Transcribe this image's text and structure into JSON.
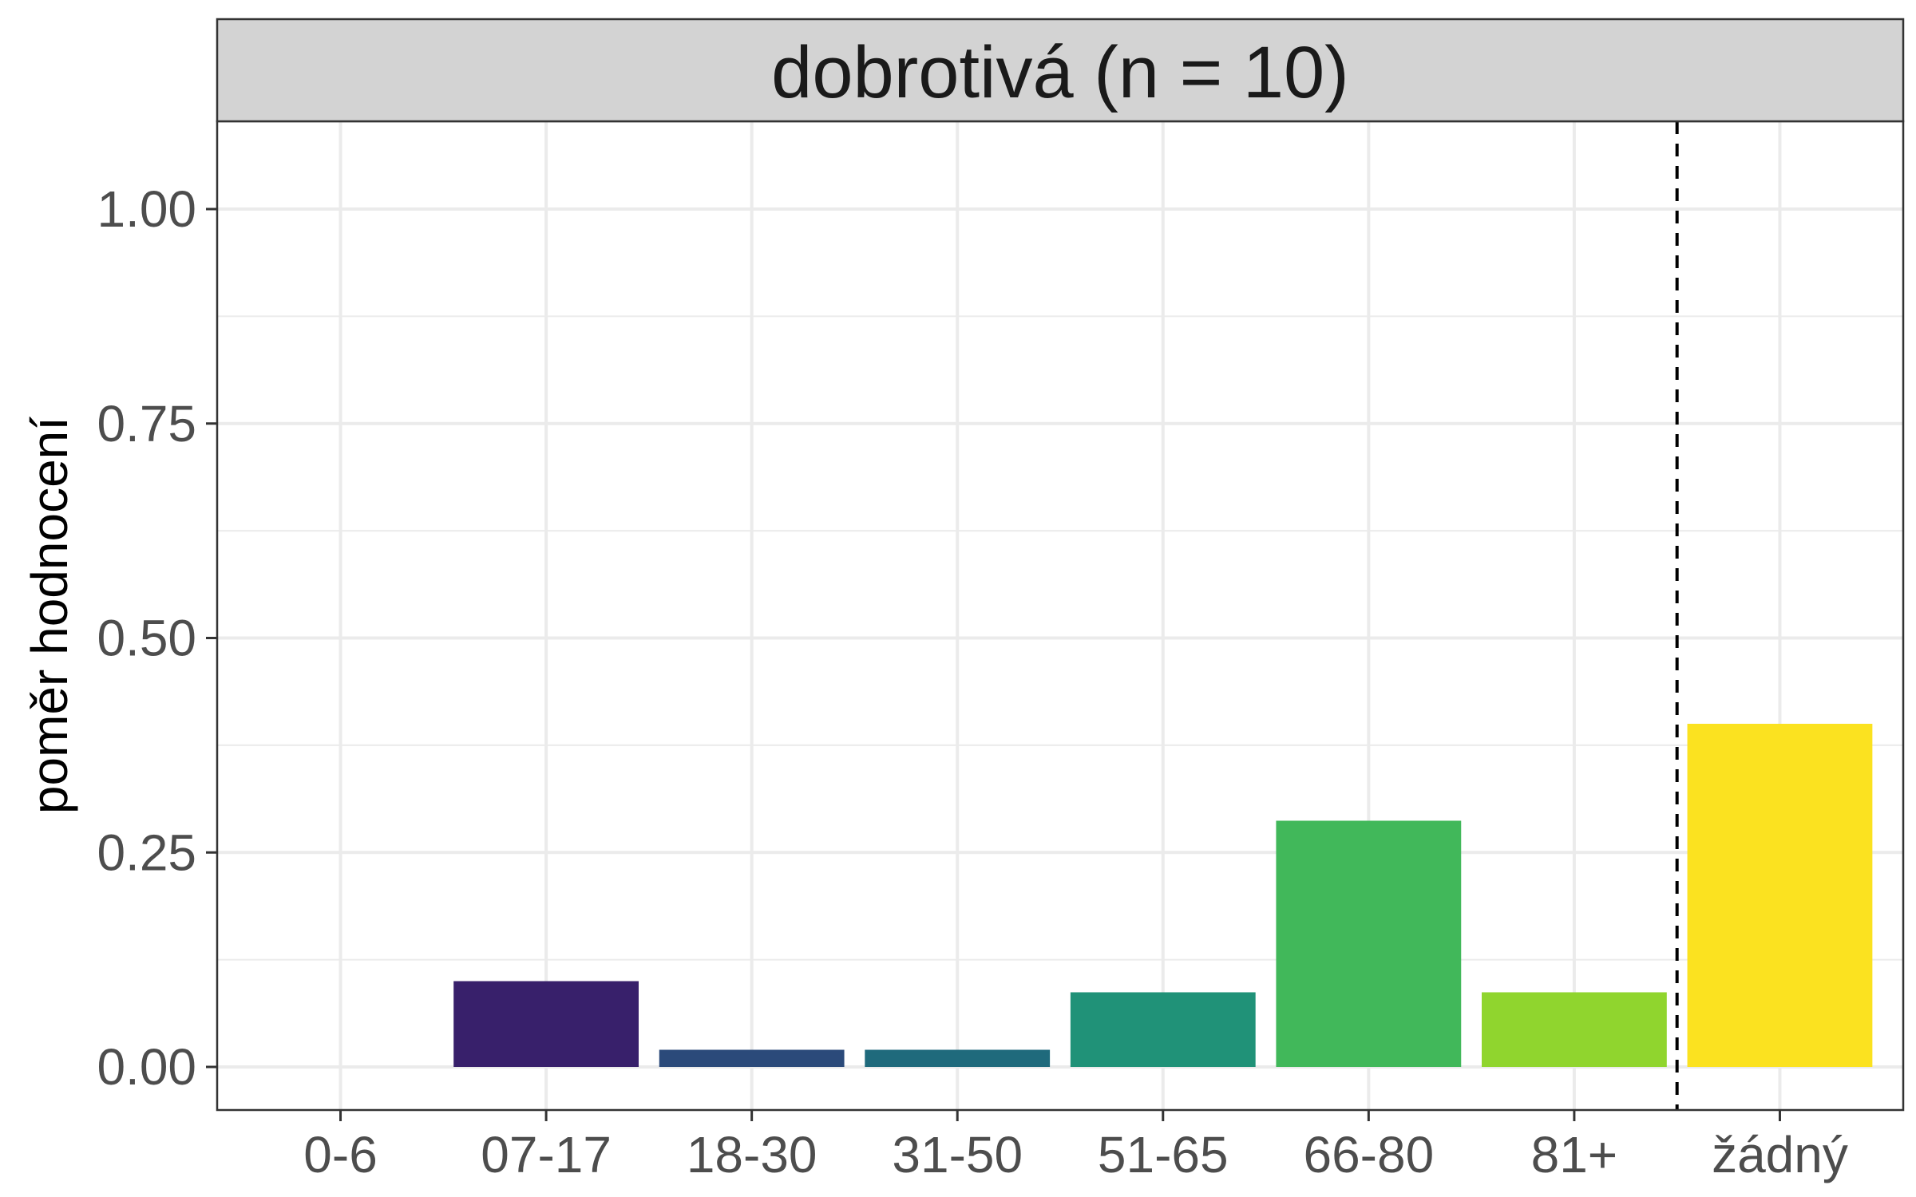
{
  "chart_data": {
    "type": "bar",
    "facet_title": "dobrotivá (n = 10)",
    "ylabel": "poměr hodnocení",
    "xlabel": "",
    "categories": [
      "0-6",
      "07-17",
      "18-30",
      "31-50",
      "51-65",
      "66-80",
      "81+",
      "žádný"
    ],
    "values": [
      0.0,
      0.1,
      0.02,
      0.02,
      0.087,
      0.287,
      0.087,
      0.4
    ],
    "colors": [
      "#440154",
      "#38206b",
      "#2b4a7a",
      "#1f6a7c",
      "#209278",
      "#41b85a",
      "#90d52e",
      "#fbe220"
    ],
    "ylim": [
      -0.05,
      1.1
    ],
    "yticks": [
      "0.00",
      "0.25",
      "0.50",
      "0.75",
      "1.00"
    ],
    "reference_line": {
      "between": [
        "81+",
        "žádný"
      ],
      "style": "dashed",
      "color": "#000000"
    },
    "grid": true,
    "legend": "none"
  }
}
